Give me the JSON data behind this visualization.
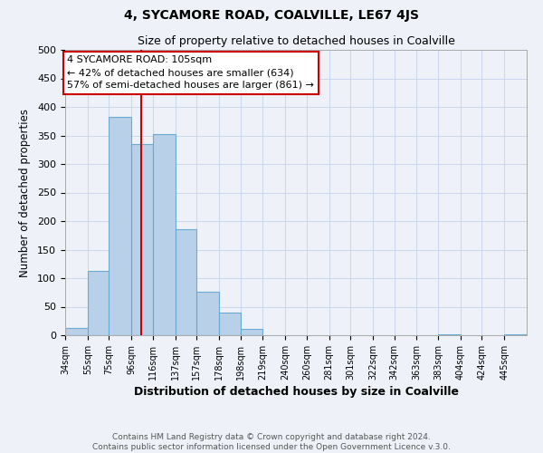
{
  "title": "4, SYCAMORE ROAD, COALVILLE, LE67 4JS",
  "subtitle": "Size of property relative to detached houses in Coalville",
  "xlabel": "Distribution of detached houses by size in Coalville",
  "ylabel": "Number of detached properties",
  "footer_line1": "Contains HM Land Registry data © Crown copyright and database right 2024.",
  "footer_line2": "Contains public sector information licensed under the Open Government Licence v.3.0.",
  "bin_labels": [
    "34sqm",
    "55sqm",
    "75sqm",
    "96sqm",
    "116sqm",
    "137sqm",
    "157sqm",
    "178sqm",
    "198sqm",
    "219sqm",
    "240sqm",
    "260sqm",
    "281sqm",
    "301sqm",
    "322sqm",
    "342sqm",
    "363sqm",
    "383sqm",
    "404sqm",
    "424sqm",
    "445sqm"
  ],
  "bar_values": [
    12,
    113,
    383,
    335,
    352,
    185,
    76,
    39,
    11,
    0,
    0,
    0,
    0,
    0,
    0,
    0,
    0,
    2,
    0,
    0,
    2
  ],
  "bar_color": "#b8d0e8",
  "bar_edge_color": "#6aaad4",
  "grid_color": "#c8d8ec",
  "vline_x_index": 3.5,
  "vline_color": "#cc0000",
  "annotation_line1": "4 SYCAMORE ROAD: 105sqm",
  "annotation_line2": "← 42% of detached houses are smaller (634)",
  "annotation_line3": "57% of semi-detached houses are larger (861) →",
  "annotation_box_color": "#ffffff",
  "annotation_box_edge": "#cc0000",
  "ylim": [
    0,
    500
  ],
  "bin_edges": [
    34,
    55,
    75,
    96,
    116,
    137,
    157,
    178,
    198,
    219,
    240,
    260,
    281,
    301,
    322,
    342,
    363,
    383,
    404,
    424,
    445,
    466
  ],
  "background_color": "#eef2f8",
  "plot_bg_color": "#eef2f8",
  "title_fontsize": 10,
  "subtitle_fontsize": 9
}
